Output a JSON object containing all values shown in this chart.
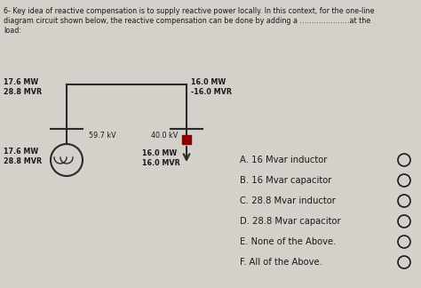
{
  "header_lines": [
    "6- Key idea of reactive compensation is to supply reactive power locally. In this context, for the one-line",
    "diagram circuit shown below, the reactive compensation can be done by adding a …………………at the",
    "load:"
  ],
  "top_left_label1": "17.6 MW",
  "top_left_label2": "28.8 MVR",
  "top_right_label1": "16.0 MW",
  "top_right_label2": "-16.0 MVR",
  "mid_label_left": "59.7 kV",
  "mid_label_right": "40.0 kV",
  "bot_left_label1": "17.6 MW",
  "bot_left_label2": "28.8 MVR",
  "bot_mid_label1": "16.0 MW",
  "bot_mid_label2": "16.0 MVR",
  "options": [
    "A. 16 Mvar inductor",
    "B. 16 Mvar capacitor",
    "C. 28.8 Mvar inductor",
    "D. 28.8 Mvar capacitor",
    "E. None of the Above.",
    "F. All of the Above."
  ],
  "bg_color": "#d4d0ca",
  "text_color": "#1a1a1a",
  "line_color": "#2a2a2a",
  "node_color": "#8B0000",
  "font_size_header": 5.8,
  "font_size_circuit": 5.8,
  "font_size_options": 7.2
}
